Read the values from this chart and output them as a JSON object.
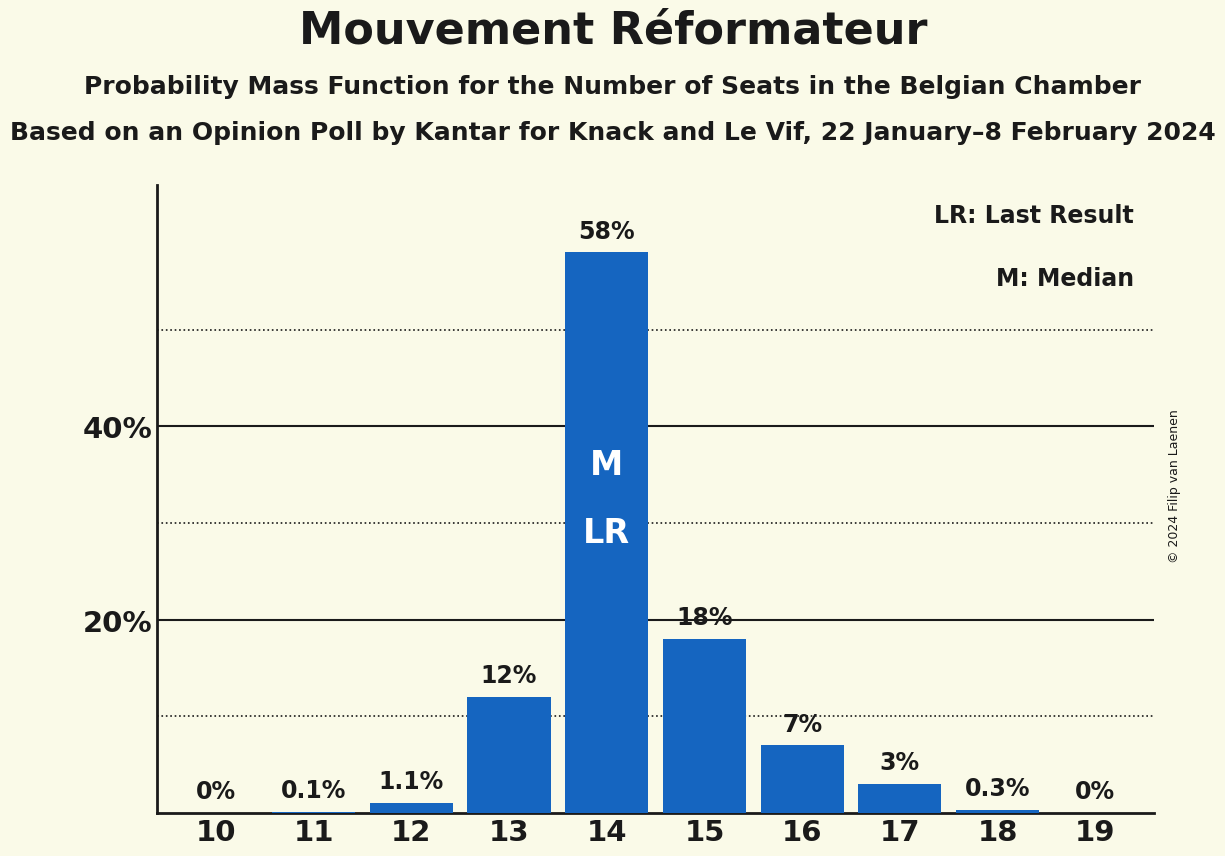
{
  "title": "Mouvement Réformateur",
  "subtitle1": "Probability Mass Function for the Number of Seats in the Belgian Chamber",
  "subtitle2": "Based on an Opinion Poll by Kantar for Knack and Le Vif, 22 January–8 February 2024",
  "copyright": "© 2024 Filip van Laenen",
  "seats": [
    10,
    11,
    12,
    13,
    14,
    15,
    16,
    17,
    18,
    19
  ],
  "probabilities": [
    0.0,
    0.1,
    1.1,
    12.0,
    58.0,
    18.0,
    7.0,
    3.0,
    0.3,
    0.0
  ],
  "labels": [
    "0%",
    "0.1%",
    "1.1%",
    "12%",
    "58%",
    "18%",
    "7%",
    "3%",
    "0.3%",
    "0%"
  ],
  "bar_color": "#1565C0",
  "background_color": "#FAFAE8",
  "text_color": "#1a1a1a",
  "median_seat": 14,
  "lr_seat": 14,
  "median_label": "M",
  "lr_label": "LR",
  "legend_lr": "LR: Last Result",
  "legend_m": "M: Median",
  "ylim": [
    0,
    65
  ],
  "yticks": [
    20,
    40
  ],
  "ytick_labels": [
    "20%",
    "40%"
  ],
  "dotted_lines": [
    10,
    30,
    50
  ],
  "solid_lines": [
    20,
    40
  ],
  "title_fontsize": 32,
  "subtitle1_fontsize": 18,
  "subtitle2_fontsize": 18,
  "bar_label_fontsize": 17,
  "axis_label_fontsize": 21,
  "legend_fontsize": 17,
  "copyright_fontsize": 9,
  "m_lr_fontsize": 24
}
